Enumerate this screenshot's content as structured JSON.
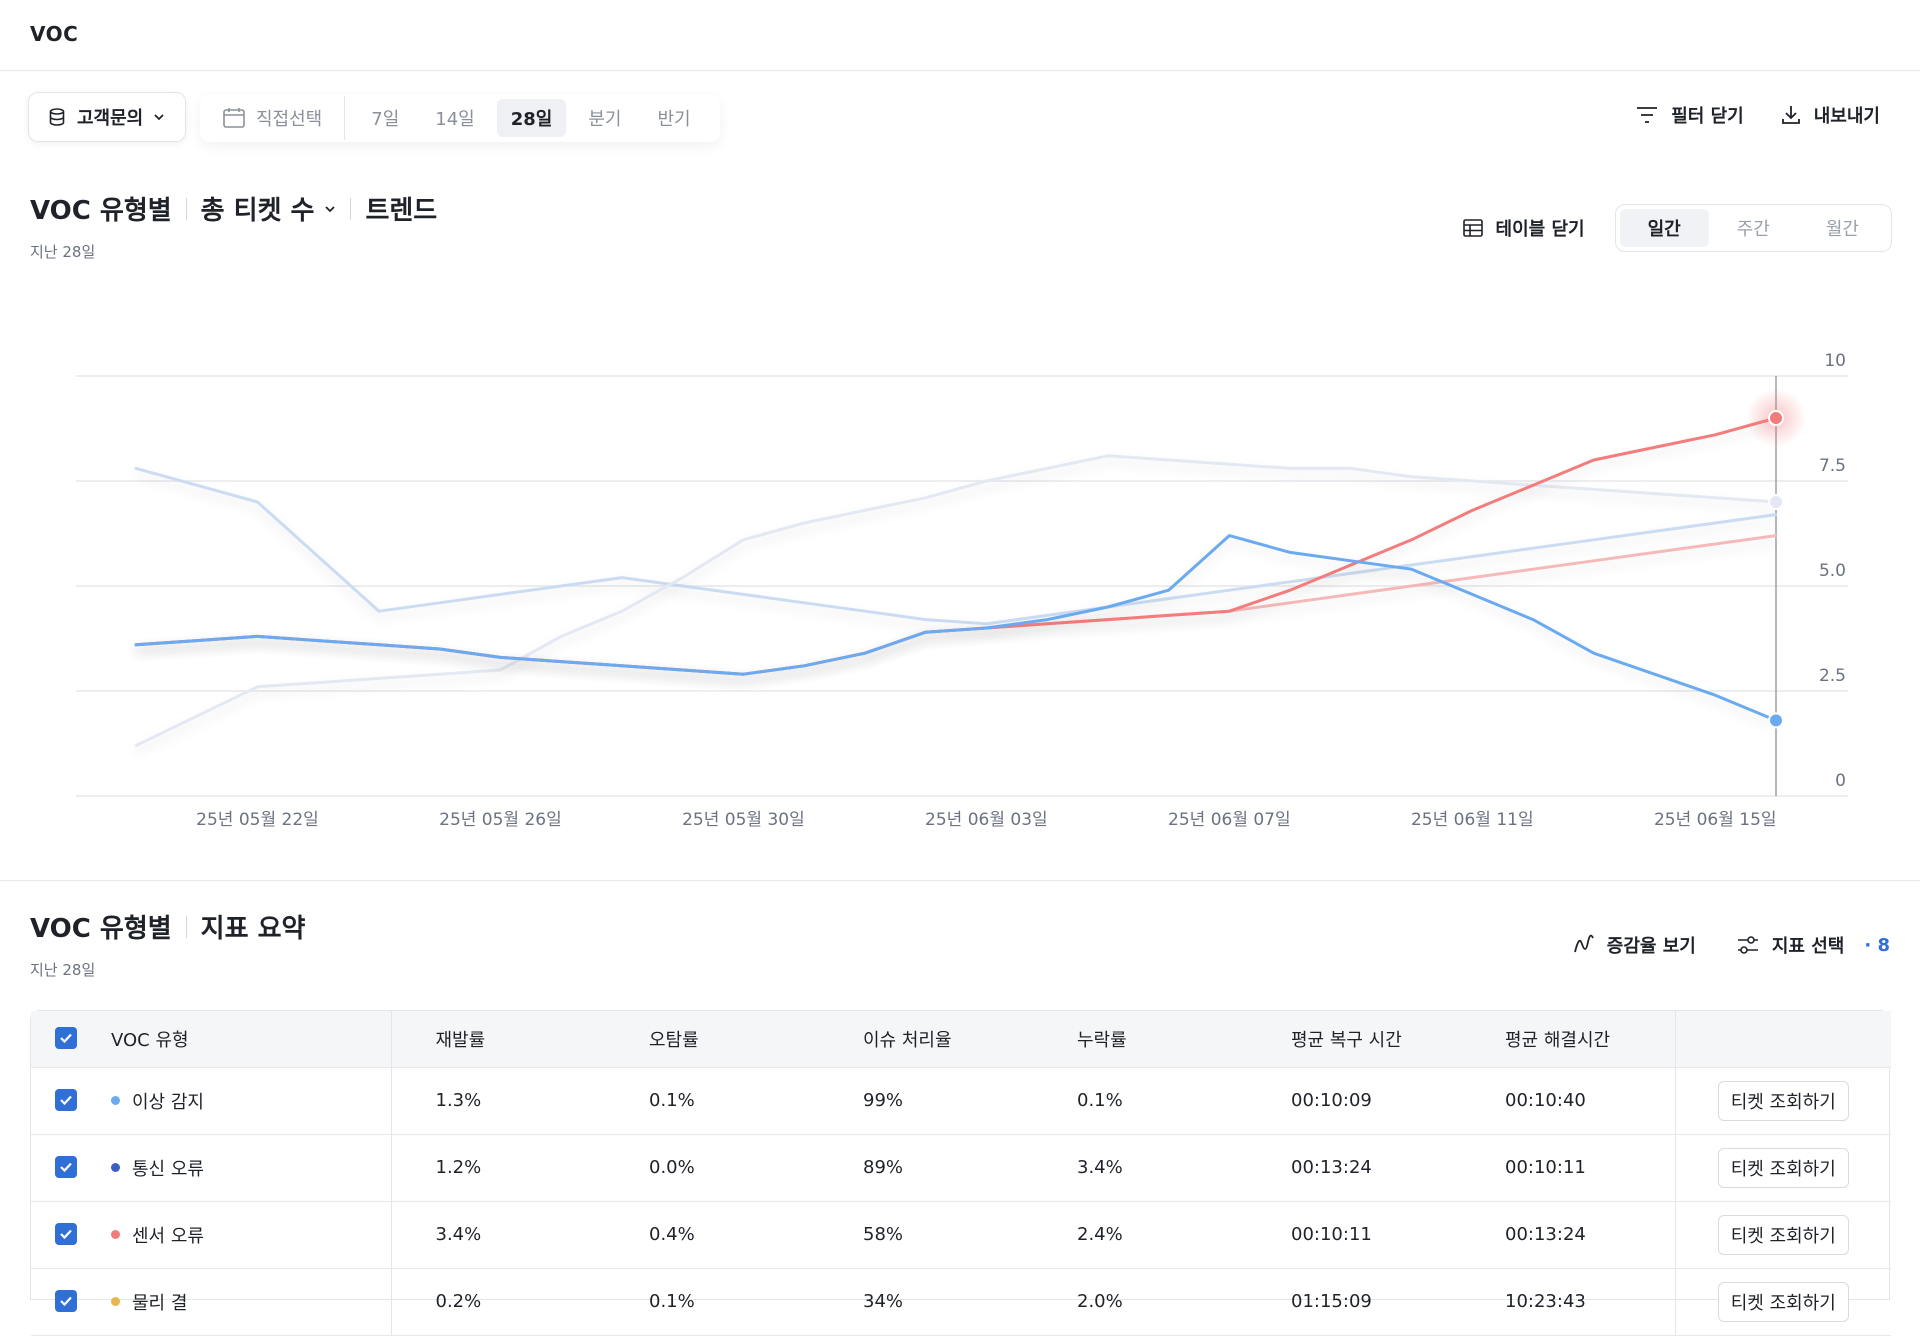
{
  "app": {
    "title": "VOC"
  },
  "filters": {
    "source_label": "고객문의",
    "custom_label": "직접선택",
    "periods": [
      "7일",
      "14일",
      "28일",
      "분기",
      "반기"
    ],
    "active_period": "28일",
    "close_filter_label": "필터 닫기",
    "export_label": "내보내기"
  },
  "chart_section": {
    "title_part1": "VOC 유형별",
    "metric_label": "총 티켓 수",
    "title_part3": "트렌드",
    "subtitle": "지난 28일",
    "table_toggle_label": "테이블 닫기",
    "granularity": [
      "일간",
      "주간",
      "월간"
    ],
    "active_granularity": "일간"
  },
  "chart_data": {
    "type": "line",
    "x": [
      "25년 05월 20일",
      "25년 05월 21일",
      "25년 05월 22일",
      "25년 05월 23일",
      "25년 05월 24일",
      "25년 05월 25일",
      "25년 05월 26일",
      "25년 05월 27일",
      "25년 05월 28일",
      "25년 05월 29일",
      "25년 05월 30일",
      "25년 05월 31일",
      "25년 06월 01일",
      "25년 06월 02일",
      "25년 06월 03일",
      "25년 06월 04일",
      "25년 06월 05일",
      "25년 06월 06일",
      "25년 06월 07일",
      "25년 06월 08일",
      "25년 06월 09일",
      "25년 06월 10일",
      "25년 06월 11일",
      "25년 06월 12일",
      "25년 06월 13일",
      "25년 06월 14일",
      "25년 06월 15일",
      "25년 06월 16일"
    ],
    "x_tick_labels": [
      "25년 05월 22일",
      "25년 05월 26일",
      "25년 05월 30일",
      "25년 06월 03일",
      "25년 06월 07일",
      "25년 06월 11일",
      "25년 06월 15일"
    ],
    "y_ticks": [
      "0",
      "2.5",
      "5.0",
      "7.5",
      "10"
    ],
    "ylim": [
      0,
      10
    ],
    "series": [
      {
        "color": "#cbdcf2",
        "values": [
          7.8,
          7.4,
          7.0,
          5.7,
          4.4,
          4.6,
          4.8,
          5.0,
          5.2,
          5.0,
          4.8,
          4.6,
          4.4,
          4.2,
          4.1,
          4.3,
          4.5,
          4.7,
          4.9,
          5.1,
          5.3,
          5.5,
          5.7,
          5.9,
          6.1,
          6.3,
          6.5,
          6.7
        ]
      },
      {
        "color": "#e3e8f2",
        "values": [
          1.2,
          1.9,
          2.6,
          2.7,
          2.8,
          2.9,
          3.0,
          3.8,
          4.4,
          5.2,
          6.1,
          6.5,
          6.8,
          7.1,
          7.5,
          7.8,
          8.1,
          8.0,
          7.9,
          7.8,
          7.8,
          7.6,
          7.5,
          7.4,
          7.3,
          7.2,
          7.1,
          7.0
        ]
      },
      {
        "color": "#f6b9b9",
        "values": [
          3.6,
          3.7,
          3.8,
          3.7,
          3.6,
          3.5,
          3.3,
          3.2,
          3.1,
          3.0,
          2.9,
          3.1,
          3.4,
          3.9,
          4.0,
          4.1,
          4.2,
          4.3,
          4.4,
          4.6,
          4.8,
          5.0,
          5.2,
          5.4,
          5.6,
          5.8,
          6.0,
          6.2
        ]
      },
      {
        "color": "#f47b7b",
        "values": [
          3.6,
          3.7,
          3.8,
          3.7,
          3.6,
          3.5,
          3.3,
          3.2,
          3.1,
          3.0,
          2.9,
          3.1,
          3.4,
          3.9,
          4.0,
          4.1,
          4.2,
          4.3,
          4.4,
          4.9,
          5.5,
          6.1,
          6.8,
          7.4,
          8.0,
          8.3,
          8.6,
          9.0
        ]
      },
      {
        "color": "#6aaaf0",
        "values": [
          3.6,
          3.7,
          3.8,
          3.7,
          3.6,
          3.5,
          3.3,
          3.2,
          3.1,
          3.0,
          2.9,
          3.1,
          3.4,
          3.9,
          4.0,
          4.2,
          4.5,
          4.9,
          6.2,
          5.8,
          5.6,
          5.4,
          4.8,
          4.2,
          3.4,
          2.9,
          2.4,
          1.8
        ]
      }
    ],
    "grid": true
  },
  "summary_section": {
    "title_part1": "VOC 유형별",
    "title_part2": "지표 요약",
    "subtitle": "지난 28일",
    "growth_label": "증감율 보기",
    "metric_select_label": "지표 선택",
    "metric_count": "· 8"
  },
  "table": {
    "headers": [
      "VOC 유형",
      "재발률",
      "오탐률",
      "이슈 처리율",
      "누락률",
      "평균 복구 시간",
      "평균 해결시간"
    ],
    "button_label": "티켓 조회하기",
    "rows": [
      {
        "name": "이상 감지",
        "dot": "#6aaaf0",
        "values": [
          "1.3%",
          "0.1%",
          "99%",
          "0.1%",
          "00:10:09",
          "00:10:40"
        ]
      },
      {
        "name": "통신 오류",
        "dot": "#3d5fc4",
        "values": [
          "1.2%",
          "0.0%",
          "89%",
          "3.4%",
          "00:13:24",
          "00:10:11"
        ]
      },
      {
        "name": "센서 오류",
        "dot": "#f47b7b",
        "values": [
          "3.4%",
          "0.4%",
          "58%",
          "2.4%",
          "00:10:11",
          "00:13:24"
        ]
      },
      {
        "name": "물리 결",
        "dot": "#e8b64a",
        "values": [
          "0.2%",
          "0.1%",
          "34%",
          "2.0%",
          "01:15:09",
          "10:23:43"
        ]
      }
    ]
  }
}
